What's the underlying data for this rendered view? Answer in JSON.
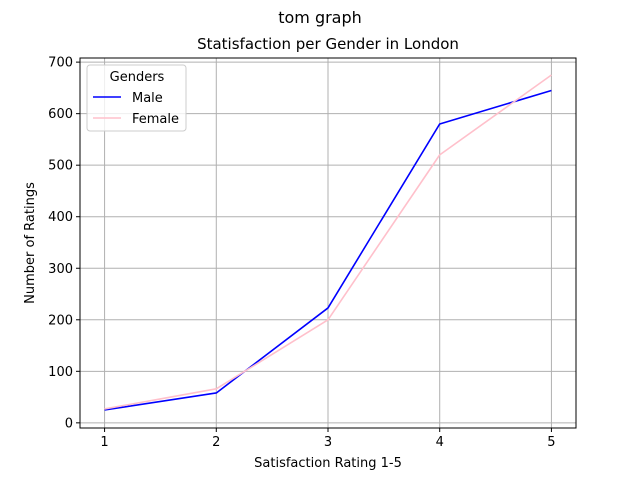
{
  "chart_data": {
    "type": "line",
    "suptitle": "tom graph",
    "title": "Statisfaction per Gender in London",
    "xlabel": "Satisfaction Rating 1-5",
    "ylabel": "Number of Ratings",
    "x": [
      1,
      2,
      3,
      4,
      5
    ],
    "xlim": [
      0.78,
      5.22
    ],
    "ylim": [
      -10,
      708
    ],
    "xticks": [
      "1",
      "2",
      "3",
      "4",
      "5"
    ],
    "yticks": [
      0,
      100,
      200,
      300,
      400,
      500,
      600,
      700
    ],
    "grid": true,
    "legend": {
      "title": "Genders",
      "placement": "top-left"
    },
    "series": [
      {
        "name": "Male",
        "color": "#0000ff",
        "values": [
          25,
          58,
          223,
          580,
          645
        ]
      },
      {
        "name": "Female",
        "color": "#ffc0cb",
        "values": [
          27,
          66,
          200,
          520,
          675
        ]
      }
    ]
  }
}
